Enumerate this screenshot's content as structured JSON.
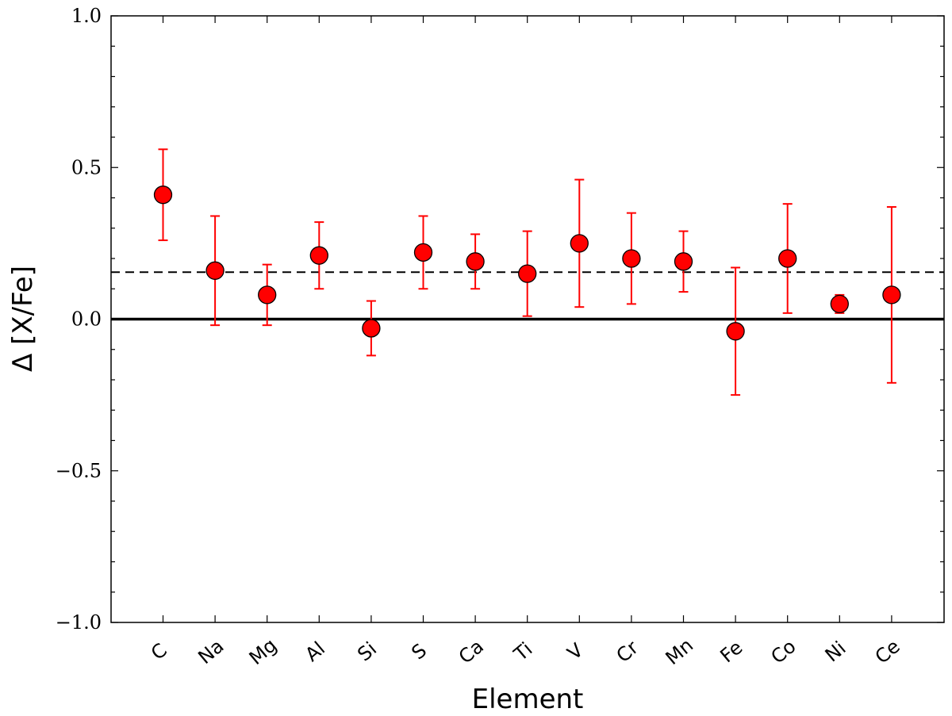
{
  "chart_data": {
    "type": "scatter",
    "xlabel": "Element",
    "ylabel": "Δ [X/Fe]",
    "ylim": [
      -1.0,
      1.0
    ],
    "yticks": [
      -1.0,
      -0.5,
      0.0,
      0.5,
      1.0
    ],
    "ytick_labels": [
      "−1.0",
      "−0.5",
      "0.0",
      "0.5",
      "1.0"
    ],
    "grid": false,
    "categories": [
      "C",
      "Na",
      "Mg",
      "Al",
      "Si",
      "S",
      "Ca",
      "Ti",
      "V",
      "Cr",
      "Mn",
      "Fe",
      "Co",
      "Ni",
      "Ce"
    ],
    "series": [
      {
        "values": [
          0.41,
          0.16,
          0.08,
          0.21,
          -0.03,
          0.22,
          0.19,
          0.15,
          0.25,
          0.2,
          0.19,
          -0.04,
          0.2,
          0.05,
          0.08
        ],
        "err_low": [
          0.26,
          -0.02,
          -0.02,
          0.1,
          -0.12,
          0.1,
          0.1,
          0.01,
          0.04,
          0.05,
          0.09,
          -0.25,
          0.02,
          0.02,
          -0.21
        ],
        "err_high": [
          0.56,
          0.34,
          0.18,
          0.32,
          0.06,
          0.34,
          0.28,
          0.29,
          0.46,
          0.35,
          0.29,
          0.17,
          0.38,
          0.08,
          0.37
        ],
        "marker_color": "#ff0000",
        "errorbar_color": "#ff0000"
      }
    ],
    "reference_lines": [
      {
        "y": 0.0,
        "style": "solid",
        "color": "#000000"
      },
      {
        "y": 0.155,
        "style": "dashed",
        "color": "#000000"
      }
    ]
  }
}
